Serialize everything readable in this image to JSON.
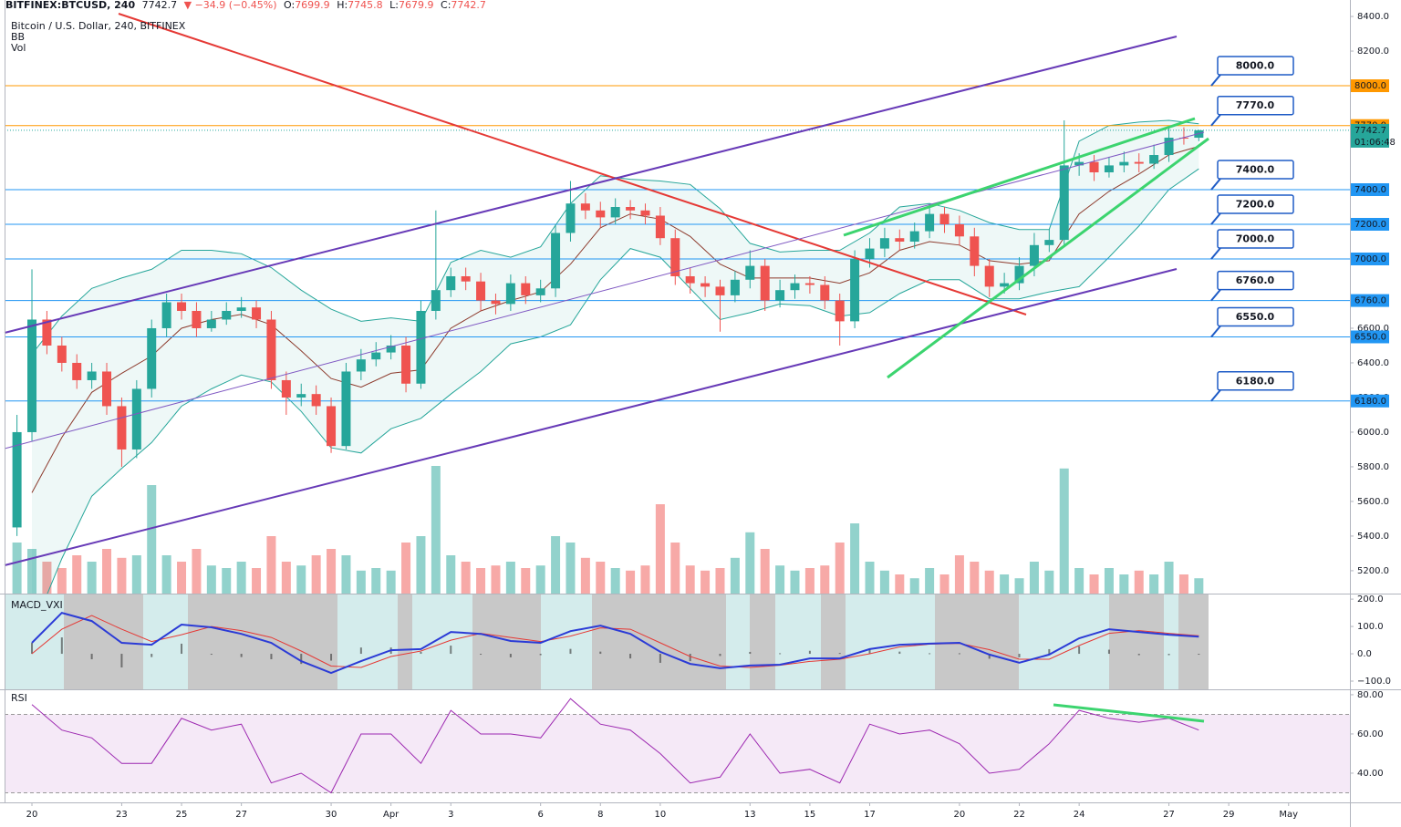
{
  "header": {
    "symbol": "BITFINEX:BTCUSD, 240",
    "change": "▼ −34.9 (−0.45%)",
    "ohlc_labels": [
      "O:",
      "H:",
      "L:",
      "C:"
    ],
    "timer": "01:06:48"
  },
  "chart_data": [
    {
      "type": "candlestick",
      "title": "Bitcoin / U.S. Dollar, 240, BITFINEX",
      "indicators": [
        "BB",
        "Vol"
      ],
      "up_color": "#26a69a",
      "down_color": "#ef5350",
      "x": [
        -0.5,
        0,
        0.5,
        1,
        1.5,
        2,
        2.5,
        3,
        3.5,
        4,
        4.5,
        5,
        5.5,
        6,
        6.5,
        7,
        7.5,
        8,
        8.5,
        9,
        9.5,
        10,
        10.5,
        11,
        11.5,
        12,
        12.5,
        13,
        13.5,
        14,
        14.5,
        15,
        15.5,
        16,
        16.5,
        17,
        17.5,
        18,
        18.5,
        19,
        19.5,
        20,
        20.5,
        21,
        21.5,
        22,
        22.5,
        23,
        23.5,
        24,
        24.5,
        25,
        25.5,
        26,
        26.5,
        27,
        27.5,
        28,
        28.5,
        29,
        29.5,
        30,
        30.5,
        31,
        31.5,
        32,
        32.5,
        33,
        33.5,
        34,
        34.5,
        35,
        35.5,
        36,
        36.5,
        37,
        37.5,
        38,
        38.5,
        39
      ],
      "open": [
        5450,
        6000,
        6650,
        6500,
        6400,
        6300,
        6350,
        6150,
        5900,
        6250,
        6600,
        6750,
        6700,
        6600,
        6650,
        6700,
        6720,
        6650,
        6300,
        6200,
        6220,
        6150,
        5920,
        6350,
        6420,
        6460,
        6500,
        6280,
        6700,
        6820,
        6900,
        6870,
        6760,
        6740,
        6860,
        6790,
        6830,
        7150,
        7320,
        7280,
        7240,
        7300,
        7280,
        7250,
        7120,
        6900,
        6860,
        6840,
        6790,
        6880,
        6960,
        6760,
        6820,
        6860,
        6850,
        6760,
        6640,
        7000,
        7060,
        7120,
        7100,
        7160,
        7260,
        7200,
        7130,
        6960,
        6840,
        6860,
        6960,
        7080,
        7110,
        7540,
        7560,
        7500,
        7540,
        7560,
        7550,
        7600,
        7700,
        7699.9
      ],
      "high": [
        6100,
        6940,
        6700,
        6550,
        6450,
        6400,
        6400,
        6200,
        6300,
        6650,
        6800,
        6800,
        6750,
        6700,
        6750,
        6780,
        6760,
        6700,
        6350,
        6280,
        6270,
        6200,
        6400,
        6480,
        6520,
        6560,
        6550,
        6760,
        7280,
        6950,
        6950,
        6920,
        6800,
        6910,
        6900,
        6880,
        7200,
        7450,
        7380,
        7330,
        7350,
        7340,
        7320,
        7300,
        7170,
        6950,
        6900,
        6880,
        6930,
        7050,
        7000,
        6880,
        6910,
        6900,
        6900,
        6800,
        7050,
        7120,
        7180,
        7170,
        7210,
        7320,
        7300,
        7250,
        7180,
        7000,
        6920,
        7010,
        7150,
        7170,
        7800,
        7610,
        7600,
        7590,
        7620,
        7610,
        7660,
        7760,
        7760,
        7745.8
      ],
      "low": [
        5400,
        5950,
        6450,
        6350,
        6250,
        6250,
        6100,
        5800,
        5850,
        6200,
        6550,
        6650,
        6550,
        6580,
        6620,
        6660,
        6600,
        6250,
        6100,
        6150,
        6100,
        5880,
        5900,
        6300,
        6380,
        6420,
        6230,
        6250,
        6650,
        6780,
        6820,
        6700,
        6680,
        6700,
        6740,
        6750,
        6780,
        7100,
        7230,
        7180,
        7200,
        7230,
        7200,
        7080,
        6850,
        6800,
        6780,
        6580,
        6750,
        6830,
        6700,
        6720,
        6770,
        6800,
        6710,
        6500,
        6600,
        6950,
        7010,
        7050,
        7060,
        7120,
        7150,
        7080,
        6900,
        6780,
        6800,
        6820,
        6900,
        7040,
        7080,
        7480,
        7450,
        7470,
        7500,
        7500,
        7520,
        7560,
        7660,
        7679.9
      ],
      "close": [
        6000,
        6650,
        6500,
        6400,
        6300,
        6350,
        6150,
        5900,
        6250,
        6600,
        6750,
        6700,
        6600,
        6650,
        6700,
        6720,
        6650,
        6300,
        6200,
        6220,
        6150,
        5920,
        6350,
        6420,
        6460,
        6500,
        6280,
        6700,
        6820,
        6900,
        6870,
        6760,
        6740,
        6860,
        6790,
        6830,
        7150,
        7320,
        7280,
        7240,
        7300,
        7280,
        7250,
        7120,
        6900,
        6860,
        6840,
        6790,
        6880,
        6960,
        6760,
        6820,
        6860,
        6850,
        6760,
        6640,
        7000,
        7060,
        7120,
        7100,
        7160,
        7260,
        7200,
        7130,
        6960,
        6840,
        6860,
        6960,
        7080,
        7110,
        7540,
        7560,
        7500,
        7540,
        7560,
        7550,
        7600,
        7700,
        7699.9,
        7742.7
      ],
      "volume": [
        40,
        35,
        25,
        20,
        30,
        25,
        35,
        28,
        30,
        85,
        30,
        25,
        35,
        22,
        20,
        25,
        20,
        45,
        25,
        22,
        30,
        35,
        30,
        18,
        20,
        18,
        40,
        45,
        100,
        30,
        25,
        20,
        22,
        25,
        20,
        22,
        45,
        40,
        28,
        25,
        20,
        18,
        22,
        70,
        40,
        22,
        18,
        20,
        28,
        48,
        35,
        22,
        18,
        20,
        22,
        40,
        55,
        25,
        18,
        15,
        12,
        20,
        15,
        30,
        25,
        18,
        15,
        12,
        25,
        18,
        98,
        20,
        15,
        20,
        15,
        18,
        15,
        25,
        15,
        12
      ],
      "bb": {
        "color": "#26a69a",
        "basis_color": "#8d3b2d",
        "x": [
          0,
          1,
          2,
          3,
          4,
          5,
          6,
          7,
          8,
          9,
          10,
          11,
          12,
          13,
          14,
          15,
          16,
          17,
          18,
          19,
          20,
          21,
          22,
          23,
          24,
          25,
          26,
          27,
          28,
          29,
          30,
          31,
          32,
          33,
          34,
          35,
          36,
          37,
          38,
          39
        ],
        "upper": [
          6450,
          6670,
          6830,
          6890,
          6940,
          7050,
          7050,
          7030,
          6950,
          6820,
          6710,
          6640,
          6660,
          6640,
          6980,
          7050,
          7010,
          7070,
          7320,
          7480,
          7460,
          7450,
          7430,
          7290,
          7090,
          7040,
          7050,
          7050,
          7150,
          7300,
          7320,
          7280,
          7210,
          7170,
          7170,
          7680,
          7770,
          7790,
          7800,
          7780
        ],
        "basis": [
          5650,
          5970,
          6230,
          6340,
          6440,
          6600,
          6650,
          6680,
          6620,
          6470,
          6310,
          6260,
          6340,
          6360,
          6600,
          6700,
          6760,
          6810,
          6970,
          7180,
          7260,
          7230,
          7130,
          6970,
          6890,
          6890,
          6890,
          6860,
          6920,
          7050,
          7100,
          7080,
          6990,
          6970,
          6990,
          7260,
          7390,
          7490,
          7600,
          7650
        ],
        "lower": [
          4850,
          5270,
          5630,
          5790,
          5940,
          6150,
          6250,
          6330,
          6290,
          6120,
          5910,
          5880,
          6020,
          6080,
          6220,
          6350,
          6510,
          6550,
          6620,
          6880,
          7060,
          7010,
          6830,
          6650,
          6690,
          6740,
          6730,
          6670,
          6690,
          6800,
          6880,
          6880,
          6770,
          6770,
          6810,
          6840,
          7010,
          7190,
          7400,
          7520
        ]
      },
      "levels": [
        {
          "value": 8000,
          "label": "8000.0",
          "color": "#ff9800",
          "text_color": "#e53935"
        },
        {
          "value": 7770,
          "label": "7770.0",
          "color": "#ff9800",
          "text_color": "#e53935"
        },
        {
          "value": 7400,
          "label": "7400.0",
          "color": "#2196f3",
          "text_color": "#1a237e"
        },
        {
          "value": 7200,
          "label": "7200.0",
          "color": "#2196f3",
          "text_color": "#1a237e"
        },
        {
          "value": 7000,
          "label": "7000.0",
          "color": "#2196f3",
          "text_color": "#1a237e"
        },
        {
          "value": 6760,
          "label": "6760.0",
          "color": "#2196f3",
          "text_color": "#1a237e"
        },
        {
          "value": 6550,
          "label": "6550.0",
          "color": "#2196f3",
          "text_color": "#1a237e"
        },
        {
          "value": 6180,
          "label": "6180.0",
          "color": "#2196f3",
          "text_color": "#1a237e"
        }
      ],
      "ylim": [
        5068,
        8495
      ],
      "yticks": [
        {
          "value": 5200,
          "label": "5200.0"
        },
        {
          "value": 5400,
          "label": "5400.0"
        },
        {
          "value": 5600,
          "label": "5600.0"
        },
        {
          "value": 5800,
          "label": "5800.0"
        },
        {
          "value": 6000,
          "label": "6000.0"
        },
        {
          "value": 6200,
          "label": "6200.0"
        },
        {
          "value": 6400,
          "label": "6400.0"
        },
        {
          "value": 6600,
          "label": "6600.0"
        },
        {
          "value": 8200,
          "label": "8200.0"
        },
        {
          "value": 8400,
          "label": "8400.0"
        }
      ],
      "xlim": [
        -0.915,
        44.05
      ],
      "xticks": [
        {
          "value": 0,
          "label": "20"
        },
        {
          "value": 3,
          "label": "23"
        },
        {
          "value": 5,
          "label": "25"
        },
        {
          "value": 7,
          "label": "27"
        },
        {
          "value": 10,
          "label": "30"
        },
        {
          "value": 12,
          "label": "Apr"
        },
        {
          "value": 14,
          "label": "3"
        },
        {
          "value": 17,
          "label": "6"
        },
        {
          "value": 19,
          "label": "8"
        },
        {
          "value": 21,
          "label": "10"
        },
        {
          "value": 24,
          "label": "13"
        },
        {
          "value": 26,
          "label": "15"
        },
        {
          "value": 28,
          "label": "17"
        },
        {
          "value": 31,
          "label": "20"
        },
        {
          "value": 33,
          "label": "22"
        },
        {
          "value": 35,
          "label": "24"
        },
        {
          "value": 38,
          "label": "27"
        },
        {
          "value": 40,
          "label": "29"
        },
        {
          "value": 42,
          "label": "May"
        }
      ]
    },
    {
      "type": "macd",
      "title": "MACD_VXI",
      "macd_color": "#2b3bd6",
      "signal_color": "#e53935",
      "x": [
        0,
        1,
        2,
        3,
        4,
        5,
        6,
        7,
        8,
        9,
        10,
        11,
        12,
        13,
        14,
        15,
        16,
        17,
        18,
        19,
        20,
        21,
        22,
        23,
        24,
        25,
        26,
        27,
        28,
        29,
        30,
        31,
        32,
        33,
        34,
        35,
        36,
        37,
        38,
        39
      ],
      "macd": [
        40,
        150,
        120,
        40,
        33,
        107,
        97,
        73,
        40,
        -27,
        -70,
        -27,
        13,
        17,
        80,
        73,
        47,
        40,
        83,
        103,
        73,
        7,
        -37,
        -53,
        -43,
        -40,
        -17,
        -17,
        17,
        33,
        37,
        40,
        -3,
        -33,
        -3,
        57,
        90,
        80,
        70,
        63
      ],
      "signal": [
        0,
        90,
        140,
        90,
        45,
        70,
        100,
        85,
        60,
        10,
        -45,
        -50,
        -10,
        10,
        50,
        75,
        60,
        45,
        65,
        95,
        90,
        40,
        -10,
        -45,
        -50,
        -42,
        -28,
        -20,
        0,
        25,
        35,
        38,
        15,
        -20,
        -20,
        30,
        75,
        85,
        75,
        66
      ],
      "histogram": [
        40,
        60,
        -20,
        -50,
        -12,
        37,
        -3,
        -12,
        -20,
        -37,
        -25,
        23,
        23,
        7,
        30,
        -2,
        -13,
        -5,
        18,
        8,
        -17,
        -33,
        -27,
        -8,
        7,
        2,
        11,
        3,
        17,
        8,
        2,
        2,
        -18,
        -13,
        17,
        27,
        15,
        -5,
        -5,
        -3
      ],
      "ylim": [
        -130,
        217
      ],
      "yticks": [
        {
          "value": 200,
          "label": "200.0"
        },
        {
          "value": 100,
          "label": "100.0"
        },
        {
          "value": 0,
          "label": "0.0"
        },
        {
          "value": -100,
          "label": "−100.0"
        }
      ]
    },
    {
      "type": "line",
      "title": "RSI",
      "color": "#9c27b0",
      "x": [
        0,
        1,
        2,
        3,
        4,
        5,
        6,
        7,
        8,
        9,
        10,
        11,
        12,
        13,
        14,
        15,
        16,
        17,
        18,
        19,
        20,
        21,
        22,
        23,
        24,
        25,
        26,
        27,
        28,
        29,
        30,
        31,
        32,
        33,
        34,
        35,
        36,
        37,
        38,
        39
      ],
      "values": [
        75,
        62,
        58,
        45,
        45,
        68,
        62,
        65,
        35,
        40,
        30,
        60,
        60,
        45,
        72,
        60,
        60,
        58,
        78,
        65,
        62,
        50,
        35,
        38,
        60,
        40,
        42,
        35,
        65,
        60,
        62,
        55,
        40,
        42,
        55,
        72,
        68,
        66,
        68,
        62
      ],
      "band": [
        30,
        70
      ],
      "ylim": [
        25.1,
        82.3
      ],
      "yticks": [
        {
          "value": 80,
          "label": "80.00"
        },
        {
          "value": 60,
          "label": "60.00"
        },
        {
          "value": 40,
          "label": "40.00"
        }
      ]
    }
  ]
}
